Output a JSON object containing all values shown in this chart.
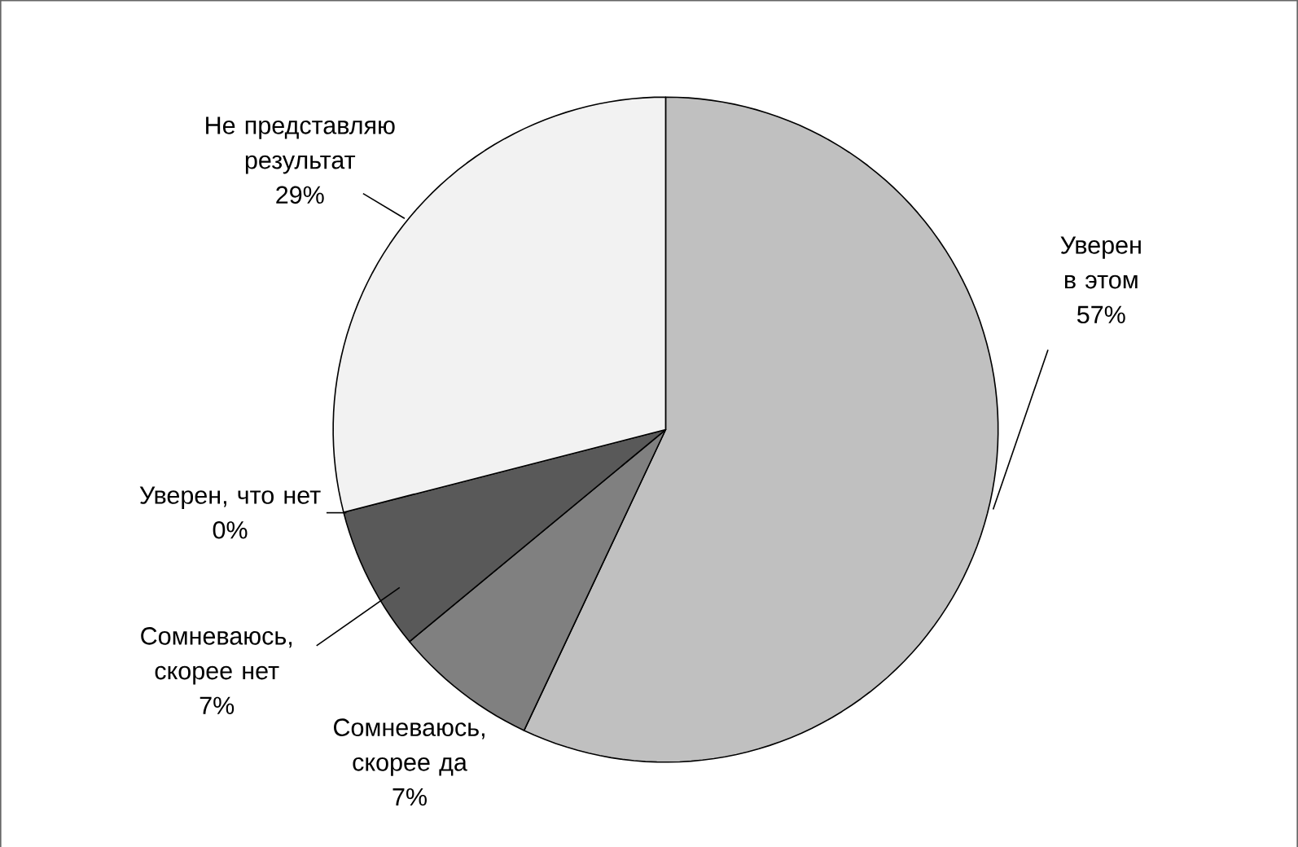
{
  "chart_data": {
    "type": "pie",
    "categories": [
      "Уверен в этом",
      "Сомневаюсь, скорее да",
      "Сомневаюсь, скорее нет",
      "Уверен, что нет",
      "Не представляю результат"
    ],
    "values": [
      57,
      7,
      7,
      0,
      29
    ],
    "value_labels": [
      "57%",
      "7%",
      "7%",
      "0%",
      "29%"
    ],
    "colors": [
      "#c0c0c0",
      "#808080",
      "#595959",
      "#262626",
      "#f2f2f2"
    ]
  }
}
